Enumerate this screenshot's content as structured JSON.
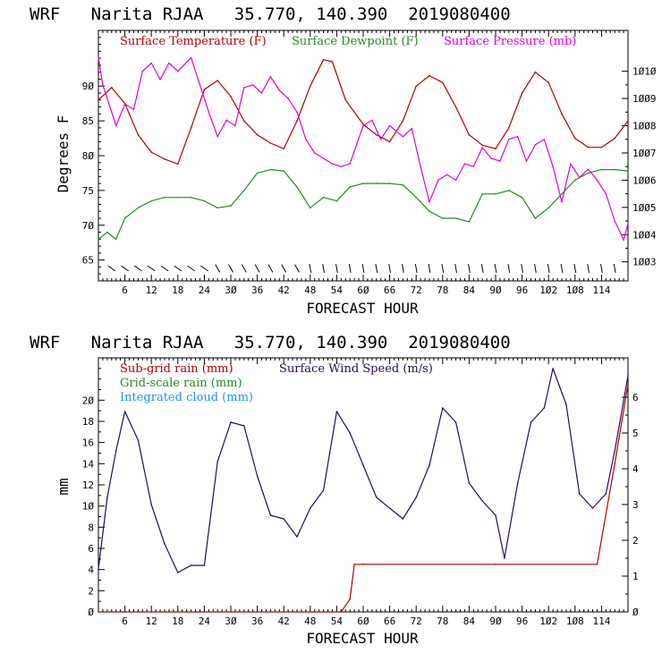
{
  "top": {
    "header": "WRF   Narita RJAA   35.770, 140.390  2019080400",
    "xlabel": "FORECAST HOUR",
    "ylabel_left": "Degrees F",
    "legend": [
      {
        "label": "Surface Temperature (F)",
        "color": "#b00000"
      },
      {
        "label": "Surface Dewpoint (F)",
        "color": "#228b22"
      },
      {
        "label": "Surface Pressure (mb)",
        "color": "#e000e0"
      }
    ]
  },
  "bottom": {
    "header": "WRF   Narita RJAA   35.770, 140.390  2019080400",
    "xlabel": "FORECAST HOUR",
    "ylabel_left": "mm",
    "legend": [
      {
        "label": "Sub-grid rain (mm)",
        "color": "#b00000"
      },
      {
        "label": "Surface Wind Speed (m/s)",
        "color": "#2a0a5e"
      },
      {
        "label": "Grid-scale rain (mm)",
        "color": "#228b22"
      },
      {
        "label": "Integrated cloud (mm)",
        "color": "#1e90ff"
      }
    ]
  },
  "chart_data": [
    {
      "type": "line",
      "xlim": [
        0,
        120
      ],
      "x_ticks": [
        "6",
        "12",
        "18",
        "24",
        "3Ø",
        "36",
        "42",
        "48",
        "54",
        "6Ø",
        "66",
        "72",
        "78",
        "84",
        "9Ø",
        "96",
        "1Ø2",
        "1Ø8",
        "114"
      ],
      "ylim_left": [
        62,
        98
      ],
      "y_ticks_left": [
        "65",
        "7Ø",
        "75",
        "8Ø",
        "85",
        "9Ø"
      ],
      "ylim_right": [
        1002.3,
        1011.5
      ],
      "y_ticks_right": [
        "1ØØ3",
        "1ØØ4",
        "1ØØ5",
        "1ØØ6",
        "1ØØ7",
        "1ØØ8",
        "1ØØ9",
        "1Ø1Ø"
      ],
      "series": [
        {
          "name": "Surface Temperature (F)",
          "axis": "left",
          "color": "#b00000",
          "x": [
            0,
            3,
            6,
            9,
            12,
            15,
            18,
            21,
            24,
            27,
            30,
            33,
            36,
            39,
            42,
            45,
            48,
            51,
            53,
            56,
            60,
            63,
            66,
            69,
            72,
            75,
            78,
            81,
            84,
            87,
            90,
            93,
            96,
            99,
            102,
            105,
            108,
            111,
            114,
            117,
            120
          ],
          "y": [
            88,
            89.8,
            87.5,
            83,
            80.5,
            79.5,
            78.8,
            84,
            89.5,
            90.8,
            88.5,
            85,
            83,
            81.8,
            81,
            85,
            90,
            93.8,
            93.5,
            88,
            84.5,
            83,
            82,
            85,
            90,
            91.5,
            90.5,
            87,
            83,
            81.5,
            81,
            84,
            89,
            92,
            90.5,
            86,
            82.5,
            81.2,
            81.2,
            82.5,
            85
          ]
        },
        {
          "name": "Surface Dewpoint (F)",
          "axis": "left",
          "color": "#228b22",
          "x": [
            0,
            2,
            4,
            6,
            9,
            12,
            15,
            18,
            21,
            24,
            27,
            30,
            33,
            36,
            39,
            42,
            45,
            48,
            51,
            54,
            57,
            60,
            63,
            66,
            69,
            72,
            75,
            78,
            81,
            84,
            87,
            90,
            93,
            96,
            99,
            102,
            105,
            108,
            111,
            114,
            117,
            120
          ],
          "y": [
            68,
            69,
            68,
            71,
            72.5,
            73.5,
            74,
            74,
            74,
            73.5,
            72.5,
            72.8,
            75,
            77.5,
            78,
            77.8,
            75.5,
            72.5,
            74,
            73.5,
            75.5,
            76,
            76,
            76,
            75.8,
            74,
            72,
            71,
            71,
            70.5,
            74.5,
            74.5,
            75,
            74,
            71,
            72.5,
            74.5,
            76.5,
            77.5,
            78,
            78,
            77.8
          ]
        },
        {
          "name": "Surface Pressure (mb)",
          "axis": "right",
          "color": "#e000e0",
          "x": [
            0,
            1,
            3,
            4,
            6,
            8,
            10,
            12,
            14,
            16,
            18,
            21,
            23,
            25,
            27,
            29,
            31,
            33,
            35,
            37,
            39,
            41,
            43,
            45,
            47,
            49,
            51,
            53,
            55,
            57,
            60,
            62,
            64,
            66,
            69,
            71,
            73,
            75,
            77,
            79,
            81,
            83,
            85,
            87,
            89,
            91,
            93,
            95,
            97,
            99,
            101,
            103,
            105,
            107,
            109,
            111,
            113,
            115,
            117,
            119,
            120
          ],
          "y": [
            1010.5,
            1009.5,
            1008.5,
            1008,
            1008.8,
            1008.6,
            1010,
            1010.3,
            1009.7,
            1010.3,
            1010,
            1010.5,
            1009.5,
            1008.5,
            1007.6,
            1008.2,
            1008,
            1009.4,
            1009.5,
            1009.2,
            1009.8,
            1009.3,
            1009,
            1008.5,
            1007.5,
            1007,
            1006.8,
            1006.6,
            1006.5,
            1006.6,
            1008,
            1008.2,
            1007.5,
            1008,
            1007.6,
            1007.9,
            1006.5,
            1005.2,
            1006,
            1006.2,
            1006,
            1006.6,
            1006.5,
            1007.2,
            1006.8,
            1006.7,
            1007.5,
            1007.6,
            1006.7,
            1007.3,
            1007.5,
            1006.5,
            1005.2,
            1006.6,
            1006.1,
            1006.4,
            1006,
            1005.5,
            1004.5,
            1003.8,
            1004.4
          ]
        }
      ]
    },
    {
      "type": "line",
      "xlim": [
        0,
        120
      ],
      "x_ticks": [
        "6",
        "12",
        "18",
        "24",
        "3Ø",
        "36",
        "42",
        "48",
        "54",
        "6Ø",
        "66",
        "72",
        "78",
        "84",
        "9Ø",
        "96",
        "1Ø2",
        "1Ø8",
        "114"
      ],
      "ylim_left": [
        0,
        24
      ],
      "y_ticks_left": [
        "Ø",
        "2",
        "4",
        "6",
        "8",
        "1Ø",
        "12",
        "14",
        "16",
        "18",
        "2Ø"
      ],
      "ylim_right": [
        0,
        7.1
      ],
      "y_ticks_right": [
        "Ø",
        "1",
        "2",
        "3",
        "4",
        "5",
        "6"
      ],
      "series": [
        {
          "name": "Surface Wind Speed (m/s)",
          "axis": "right",
          "color": "#2a0a5e",
          "x": [
            0,
            2,
            4,
            6,
            9,
            12,
            15,
            18,
            21,
            24,
            27,
            30,
            33,
            36,
            39,
            42,
            45,
            48,
            51,
            54,
            57,
            60,
            63,
            66,
            69,
            72,
            75,
            78,
            81,
            84,
            87,
            90,
            92,
            95,
            98,
            101,
            103,
            106,
            109,
            112,
            115,
            117,
            120
          ],
          "y": [
            1.2,
            3.2,
            4.5,
            5.6,
            4.8,
            3,
            1.9,
            1.1,
            1.3,
            1.3,
            4.2,
            5.3,
            5.2,
            3.8,
            2.7,
            2.6,
            2.1,
            2.9,
            3.4,
            5.6,
            5,
            4.1,
            3.2,
            2.9,
            2.6,
            3.2,
            4.1,
            5.7,
            5.3,
            3.6,
            3.1,
            2.7,
            1.5,
            3.6,
            5.3,
            5.7,
            6.8,
            5.8,
            3.3,
            2.9,
            3.3,
            4.5,
            6.6
          ]
        },
        {
          "name": "Sub-grid rain (mm)",
          "axis": "left",
          "color": "#b00000",
          "x": [
            0,
            55,
            57,
            58,
            60,
            90,
            113,
            117,
            120
          ],
          "y": [
            0,
            0,
            1.2,
            4.5,
            4.5,
            4.5,
            4.5,
            14,
            21.5
          ]
        }
      ]
    }
  ]
}
